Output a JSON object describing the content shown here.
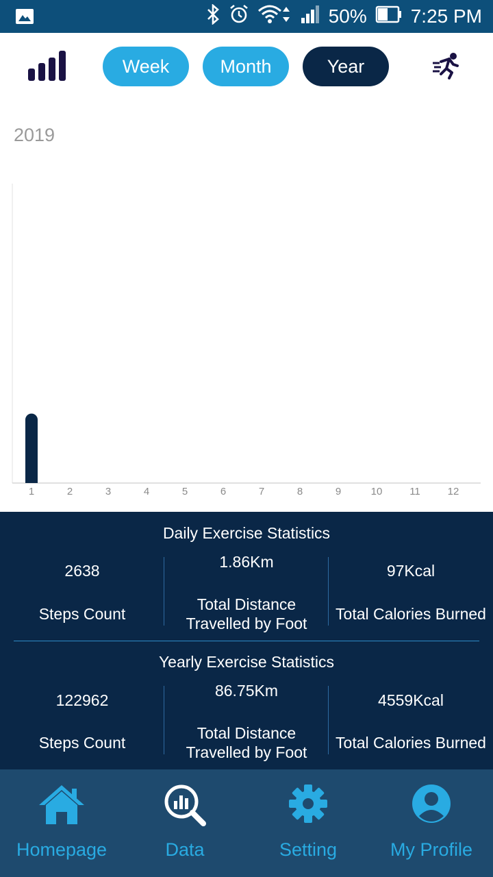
{
  "status_bar": {
    "battery": "50%",
    "time": "7:25 PM"
  },
  "toolbar": {
    "tabs": [
      {
        "label": "Week",
        "selected": false
      },
      {
        "label": "Month",
        "selected": false
      },
      {
        "label": "Year",
        "selected": true
      }
    ],
    "left_icon": "signal-bars-icon",
    "right_icon": "running-man-icon"
  },
  "year_label": "2019",
  "chart_data": {
    "type": "bar",
    "categories": [
      "1",
      "2",
      "3",
      "4",
      "5",
      "6",
      "7",
      "8",
      "9",
      "10",
      "11",
      "12"
    ],
    "values": [
      122962,
      0,
      0,
      0,
      0,
      0,
      0,
      0,
      0,
      0,
      0,
      0
    ],
    "ylim": [
      0,
      530000
    ],
    "bar_color": "#0a2747",
    "grid": false
  },
  "daily_stats": {
    "title": "Daily Exercise Statistics",
    "steps": {
      "value": "2638",
      "label": "Steps Count"
    },
    "distance": {
      "value": "1.86Km",
      "label_line1": "Total Distance",
      "label_line2": "Travelled by Foot"
    },
    "calories": {
      "value": "97Kcal",
      "label": "Total Calories Burned"
    }
  },
  "yearly_stats": {
    "title": "Yearly Exercise Statistics",
    "steps": {
      "value": "122962",
      "label": "Steps Count"
    },
    "distance": {
      "value": "86.75Km",
      "label_line1": "Total Distance",
      "label_line2": "Travelled by Foot"
    },
    "calories": {
      "value": "4559Kcal",
      "label": "Total Calories Burned"
    }
  },
  "bottom_nav": [
    {
      "label": "Homepage",
      "icon": "home-icon"
    },
    {
      "label": "Data",
      "icon": "data-search-icon"
    },
    {
      "label": "Setting",
      "icon": "gear-icon"
    },
    {
      "label": "My Profile",
      "icon": "profile-icon"
    }
  ],
  "colors": {
    "accent": "#29abe2",
    "dark": "#0a2747",
    "status_bar": "#0d4f7a",
    "nav_bg": "#1e4a6e"
  }
}
